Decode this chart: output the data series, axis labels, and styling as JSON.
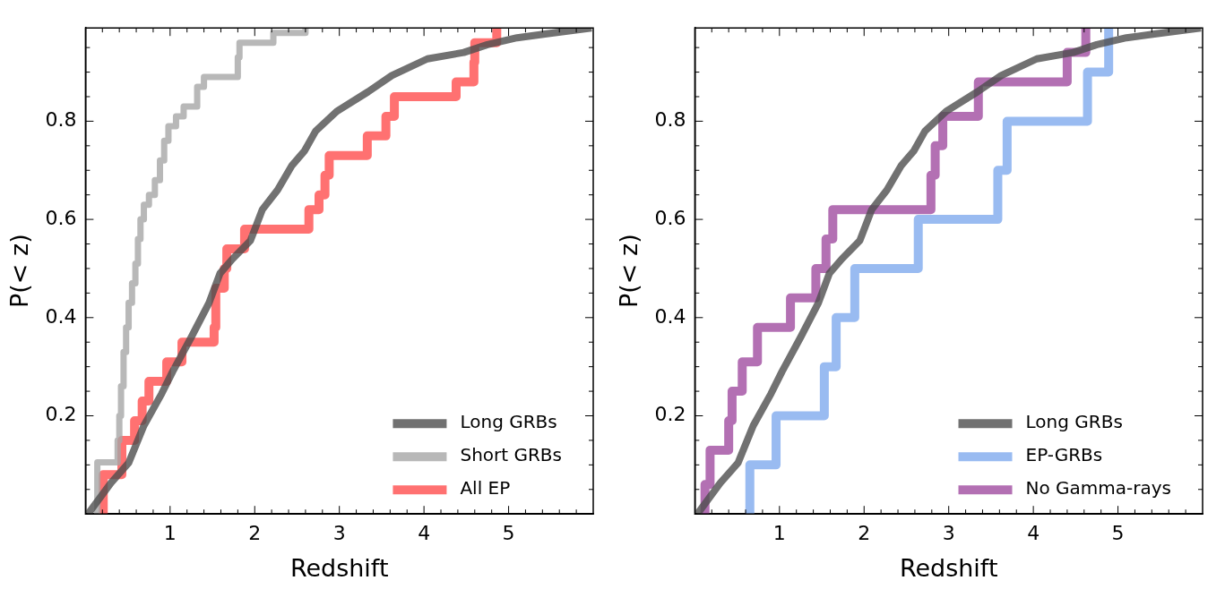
{
  "chart_data": [
    {
      "type": "step",
      "xlabel": "Redshift",
      "ylabel": "P(< z)",
      "xlim": [
        0,
        6
      ],
      "ylim": [
        0,
        0.99
      ],
      "legend": "bottom right",
      "grid": false,
      "xticks": [
        {
          "value": 0.2,
          "label": null
        },
        {
          "value": 0.4,
          "label": null
        },
        {
          "value": 0.6,
          "label": null
        },
        {
          "value": 0.8,
          "label": null
        },
        1,
        {
          "value": 1.2,
          "label": null
        },
        {
          "value": 1.4,
          "label": null
        },
        {
          "value": 1.6,
          "label": null
        },
        {
          "value": 1.8,
          "label": null
        },
        2,
        {
          "value": 2.2,
          "label": null
        },
        {
          "value": 2.4,
          "label": null
        },
        {
          "value": 2.6,
          "label": null
        },
        {
          "value": 2.8,
          "label": null
        },
        3,
        {
          "value": 3.2,
          "label": null
        },
        {
          "value": 3.4,
          "label": null
        },
        {
          "value": 3.6,
          "label": null
        },
        {
          "value": 3.8,
          "label": null
        },
        4,
        {
          "value": 4.2,
          "label": null
        },
        {
          "value": 4.4,
          "label": null
        },
        {
          "value": 4.6,
          "label": null
        },
        {
          "value": 4.8,
          "label": null
        },
        5,
        {
          "value": 5.2,
          "label": null
        },
        {
          "value": 5.4,
          "label": null
        },
        {
          "value": 5.6,
          "label": null
        },
        {
          "value": 5.8,
          "label": null
        }
      ],
      "yticks": [
        {
          "value": 0.05,
          "label": null
        },
        {
          "value": 0.1,
          "label": null
        },
        {
          "value": 0.15,
          "label": null
        },
        0.2,
        {
          "value": 0.25,
          "label": null
        },
        {
          "value": 0.3,
          "label": null
        },
        {
          "value": 0.35,
          "label": null
        },
        0.4,
        {
          "value": 0.45,
          "label": null
        },
        {
          "value": 0.5,
          "label": null
        },
        {
          "value": 0.55,
          "label": null
        },
        0.6,
        {
          "value": 0.65,
          "label": null
        },
        {
          "value": 0.7,
          "label": null
        },
        {
          "value": 0.75,
          "label": null
        },
        0.8,
        {
          "value": 0.85,
          "label": null
        },
        {
          "value": 0.9,
          "label": null
        },
        {
          "value": 0.95,
          "label": null
        }
      ],
      "series": [
        {
          "name": "Long GRBs",
          "type": "line",
          "color": "#4d4d4d",
          "x": [
            0.03,
            0.3,
            0.51,
            0.69,
            0.9,
            1.03,
            1.25,
            1.46,
            1.59,
            1.74,
            1.95,
            2.09,
            2.27,
            2.44,
            2.59,
            2.72,
            2.97,
            3.34,
            3.62,
            4.04,
            4.47,
            4.75,
            5.1,
            5.45,
            5.98
          ],
          "values": [
            0,
            0.063,
            0.104,
            0.18,
            0.245,
            0.29,
            0.36,
            0.43,
            0.49,
            0.52,
            0.557,
            0.62,
            0.66,
            0.71,
            0.74,
            0.78,
            0.82,
            0.86,
            0.893,
            0.927,
            0.94,
            0.956,
            0.97,
            0.978,
            0.99
          ]
        },
        {
          "name": "Short GRBs",
          "type": "step",
          "color": "#a6a6a6",
          "x": [
            0.1,
            0.14,
            0.38,
            0.4,
            0.42,
            0.45,
            0.48,
            0.51,
            0.55,
            0.59,
            0.62,
            0.65,
            0.69,
            0.75,
            0.82,
            0.88,
            0.93,
            0.98,
            1.07,
            1.16,
            1.32,
            1.4,
            1.8,
            1.82,
            2.22,
            2.6
          ],
          "values": [
            0,
            0.105,
            0.15,
            0.2,
            0.26,
            0.33,
            0.38,
            0.43,
            0.47,
            0.51,
            0.56,
            0.6,
            0.63,
            0.65,
            0.68,
            0.72,
            0.76,
            0.79,
            0.81,
            0.83,
            0.87,
            0.89,
            0.93,
            0.96,
            0.98,
            0.99
          ]
        },
        {
          "name": "All EP",
          "type": "step",
          "color": "#ff4d4d",
          "x": [
            0.21,
            0.21,
            0.43,
            0.58,
            0.67,
            0.75,
            0.96,
            1.14,
            1.52,
            1.54,
            1.64,
            1.67,
            1.88,
            2.64,
            2.76,
            2.83,
            2.88,
            3.33,
            3.55,
            3.65,
            4.38,
            4.59,
            4.6,
            4.86
          ],
          "values": [
            0,
            0.08,
            0.15,
            0.19,
            0.23,
            0.27,
            0.31,
            0.35,
            0.38,
            0.46,
            0.5,
            0.54,
            0.58,
            0.62,
            0.65,
            0.69,
            0.73,
            0.77,
            0.81,
            0.85,
            0.88,
            0.92,
            0.96,
            0.99
          ]
        }
      ]
    },
    {
      "type": "step",
      "xlabel": "Redshift",
      "ylabel": "P(< z)",
      "xlim": [
        0,
        6
      ],
      "ylim": [
        0,
        0.99
      ],
      "legend": "bottom right",
      "grid": false,
      "xticks": [
        {
          "value": 0.2,
          "label": null
        },
        {
          "value": 0.4,
          "label": null
        },
        {
          "value": 0.6,
          "label": null
        },
        {
          "value": 0.8,
          "label": null
        },
        1,
        {
          "value": 1.2,
          "label": null
        },
        {
          "value": 1.4,
          "label": null
        },
        {
          "value": 1.6,
          "label": null
        },
        {
          "value": 1.8,
          "label": null
        },
        2,
        {
          "value": 2.2,
          "label": null
        },
        {
          "value": 2.4,
          "label": null
        },
        {
          "value": 2.6,
          "label": null
        },
        {
          "value": 2.8,
          "label": null
        },
        3,
        {
          "value": 3.2,
          "label": null
        },
        {
          "value": 3.4,
          "label": null
        },
        {
          "value": 3.6,
          "label": null
        },
        {
          "value": 3.8,
          "label": null
        },
        4,
        {
          "value": 4.2,
          "label": null
        },
        {
          "value": 4.4,
          "label": null
        },
        {
          "value": 4.6,
          "label": null
        },
        {
          "value": 4.8,
          "label": null
        },
        5,
        {
          "value": 5.2,
          "label": null
        },
        {
          "value": 5.4,
          "label": null
        },
        {
          "value": 5.6,
          "label": null
        },
        {
          "value": 5.8,
          "label": null
        }
      ],
      "yticks": [
        {
          "value": 0.05,
          "label": null
        },
        {
          "value": 0.1,
          "label": null
        },
        {
          "value": 0.15,
          "label": null
        },
        0.2,
        {
          "value": 0.25,
          "label": null
        },
        {
          "value": 0.3,
          "label": null
        },
        {
          "value": 0.35,
          "label": null
        },
        0.4,
        {
          "value": 0.45,
          "label": null
        },
        {
          "value": 0.5,
          "label": null
        },
        {
          "value": 0.55,
          "label": null
        },
        0.6,
        {
          "value": 0.65,
          "label": null
        },
        {
          "value": 0.7,
          "label": null
        },
        {
          "value": 0.75,
          "label": null
        },
        0.8,
        {
          "value": 0.85,
          "label": null
        },
        {
          "value": 0.9,
          "label": null
        },
        {
          "value": 0.95,
          "label": null
        }
      ],
      "series": [
        {
          "name": "Long GRBs",
          "type": "line",
          "color": "#4d4d4d",
          "x": [
            0.03,
            0.3,
            0.51,
            0.69,
            0.9,
            1.03,
            1.25,
            1.46,
            1.59,
            1.74,
            1.95,
            2.09,
            2.27,
            2.44,
            2.59,
            2.72,
            2.97,
            3.34,
            3.62,
            4.04,
            4.47,
            4.75,
            5.1,
            5.45,
            5.98
          ],
          "values": [
            0,
            0.063,
            0.104,
            0.18,
            0.245,
            0.29,
            0.36,
            0.43,
            0.49,
            0.52,
            0.557,
            0.62,
            0.66,
            0.71,
            0.74,
            0.78,
            0.82,
            0.86,
            0.893,
            0.927,
            0.94,
            0.956,
            0.97,
            0.978,
            0.99
          ]
        },
        {
          "name": "EP-GRBs",
          "type": "step",
          "color": "#7faaee",
          "x": [
            0.65,
            0.65,
            0.96,
            1.53,
            1.67,
            1.89,
            2.64,
            3.58,
            3.69,
            4.64,
            4.89
          ],
          "values": [
            0,
            0.1,
            0.2,
            0.3,
            0.4,
            0.5,
            0.6,
            0.7,
            0.8,
            0.9,
            0.99
          ]
        },
        {
          "name": "No Gamma-rays",
          "type": "step",
          "color": "#a04ca0",
          "x": [
            0.12,
            0.12,
            0.18,
            0.4,
            0.44,
            0.56,
            0.74,
            1.13,
            1.43,
            1.55,
            1.63,
            2.79,
            2.84,
            2.93,
            3.35,
            4.4,
            4.62
          ],
          "values": [
            0,
            0.06,
            0.13,
            0.19,
            0.25,
            0.31,
            0.38,
            0.44,
            0.5,
            0.56,
            0.62,
            0.69,
            0.75,
            0.81,
            0.88,
            0.94,
            0.99
          ]
        }
      ]
    }
  ]
}
